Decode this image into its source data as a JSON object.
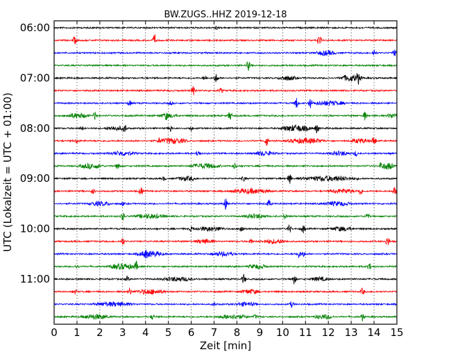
{
  "chart_data": {
    "type": "line",
    "title": "BW.ZUGS..HHZ 2019-12-18",
    "xlabel": "Zeit  [min]",
    "ylabel": "UTC (Lokalzeit = UTC + 01:00)",
    "xlim": [
      0,
      15
    ],
    "x_ticks": [
      "0",
      "1",
      "2",
      "3",
      "4",
      "5",
      "6",
      "7",
      "8",
      "9",
      "10",
      "11",
      "12",
      "13",
      "14",
      "15"
    ],
    "y_ticks": [
      "06:00",
      "07:00",
      "08:00",
      "09:00",
      "10:00",
      "11:00"
    ],
    "grid": "vertical dotted lines at each minute",
    "trace_color_cycle": [
      "#000000",
      "#ff0000",
      "#0000ff",
      "#008000"
    ],
    "trace_start_times": [
      "06:00",
      "06:15",
      "06:30",
      "06:45",
      "07:00",
      "07:15",
      "07:30",
      "07:45",
      "08:00",
      "08:15",
      "08:30",
      "08:45",
      "09:00",
      "09:15",
      "09:30",
      "09:45",
      "10:00",
      "10:15",
      "10:30",
      "10:45",
      "11:00",
      "11:15",
      "11:30",
      "11:45"
    ],
    "spikes": [
      [
        [
          7.1,
          0.3
        ]
      ],
      [
        [
          0.9,
          0.6
        ],
        [
          4.4,
          0.9
        ],
        [
          11.6,
          0.9
        ]
      ],
      [
        [
          14.0,
          0.6
        ],
        [
          14.9,
          0.5
        ]
      ],
      [
        [
          8.5,
          0.8
        ]
      ],
      [
        [
          7.1,
          0.8
        ],
        [
          13.3,
          0.7
        ],
        [
          6.6,
          0.4
        ]
      ],
      [
        [
          6.1,
          0.8
        ],
        [
          7.3,
          0.4
        ]
      ],
      [
        [
          3.3,
          0.5
        ],
        [
          10.6,
          0.9
        ],
        [
          11.2,
          0.8
        ],
        [
          5.1,
          0.3
        ]
      ],
      [
        [
          1.8,
          0.7
        ],
        [
          7.7,
          0.8
        ],
        [
          13.6,
          0.7
        ],
        [
          4.9,
          0.4
        ]
      ],
      [
        [
          3.1,
          0.6
        ],
        [
          5.1,
          0.5
        ],
        [
          11.5,
          0.8
        ],
        [
          6.0,
          0.4
        ],
        [
          1.2,
          0.3
        ]
      ],
      [
        [
          9.3,
          0.8
        ],
        [
          14.0,
          0.9
        ],
        [
          1.0,
          0.4
        ],
        [
          4.6,
          0.4
        ]
      ],
      [
        [
          6.3,
          0.6
        ],
        [
          13.2,
          0.4
        ]
      ],
      [
        [
          2.8,
          0.7
        ],
        [
          7.9,
          0.5
        ],
        [
          14.3,
          0.6
        ]
      ],
      [
        [
          10.3,
          0.9
        ],
        [
          8.3,
          0.4
        ],
        [
          4.8,
          0.3
        ]
      ],
      [
        [
          3.8,
          0.7
        ],
        [
          13.4,
          0.7
        ],
        [
          14.9,
          0.6
        ],
        [
          1.7,
          0.4
        ]
      ],
      [
        [
          7.5,
          0.9
        ],
        [
          9.4,
          0.6
        ],
        [
          3.0,
          0.3
        ]
      ],
      [
        [
          3.0,
          0.7
        ],
        [
          10.1,
          0.5
        ],
        [
          13.7,
          0.6
        ]
      ],
      [
        [
          8.2,
          0.8
        ],
        [
          10.3,
          0.7
        ],
        [
          10.9,
          0.7
        ],
        [
          6.0,
          0.4
        ]
      ],
      [
        [
          3.0,
          0.7
        ],
        [
          14.6,
          0.8
        ],
        [
          8.6,
          0.4
        ]
      ],
      [
        [
          10.7,
          0.6
        ],
        [
          10.9,
          0.5
        ],
        [
          4.0,
          0.4
        ]
      ],
      [
        [
          3.6,
          0.7
        ],
        [
          13.8,
          0.6
        ],
        [
          1.0,
          0.3
        ]
      ],
      [
        [
          8.3,
          0.8
        ],
        [
          10.5,
          0.8
        ],
        [
          3.2,
          0.4
        ]
      ],
      [
        [
          3.3,
          0.6
        ],
        [
          13.5,
          0.6
        ],
        [
          0.9,
          0.4
        ]
      ],
      [
        [
          10.4,
          0.5
        ],
        [
          7.0,
          0.3
        ]
      ],
      [
        [
          13.5,
          0.6
        ],
        [
          4.3,
          0.4
        ],
        [
          8.8,
          0.3
        ]
      ]
    ],
    "bursts": [
      [],
      [],
      [
        [
          11.9,
          1.0,
          0.35
        ]
      ],
      [],
      [
        [
          13.0,
          1.2,
          0.45
        ],
        [
          10.2,
          1.0,
          0.3
        ]
      ],
      [],
      [
        [
          12.0,
          1.8,
          0.3
        ]
      ],
      [
        [
          1.0,
          1.2,
          0.35
        ],
        [
          14.8,
          0.6,
          0.35
        ],
        [
          5.0,
          1.0,
          0.25
        ]
      ],
      [
        [
          10.6,
          1.6,
          0.45
        ],
        [
          2.7,
          1.0,
          0.3
        ]
      ],
      [
        [
          5.2,
          1.4,
          0.4
        ],
        [
          11.0,
          2.0,
          0.35
        ],
        [
          13.4,
          1.0,
          0.3
        ]
      ],
      [
        [
          3.0,
          1.4,
          0.3
        ],
        [
          9.2,
          1.2,
          0.3
        ],
        [
          12.5,
          1.0,
          0.3
        ]
      ],
      [
        [
          1.6,
          1.2,
          0.35
        ],
        [
          6.6,
          1.6,
          0.35
        ],
        [
          14.6,
          0.6,
          0.5
        ]
      ],
      [
        [
          12.0,
          3.0,
          0.35
        ],
        [
          5.8,
          1.0,
          0.3
        ]
      ],
      [
        [
          8.6,
          2.0,
          0.35
        ],
        [
          12.6,
          1.4,
          0.3
        ]
      ],
      [
        [
          2.0,
          1.2,
          0.3
        ],
        [
          12.4,
          1.4,
          0.3
        ]
      ],
      [
        [
          4.2,
          1.6,
          0.3
        ],
        [
          8.8,
          1.2,
          0.3
        ]
      ],
      [
        [
          6.8,
          1.6,
          0.3
        ],
        [
          12.6,
          1.2,
          0.3
        ]
      ],
      [
        [
          6.6,
          1.0,
          0.3
        ],
        [
          9.6,
          1.4,
          0.3
        ]
      ],
      [
        [
          4.2,
          1.4,
          0.4
        ],
        [
          7.4,
          1.2,
          0.3
        ]
      ],
      [
        [
          3.0,
          1.4,
          0.4
        ],
        [
          8.9,
          1.0,
          0.3
        ]
      ],
      [
        [
          5.4,
          1.6,
          0.3
        ],
        [
          11.6,
          1.0,
          0.25
        ]
      ],
      [
        [
          4.2,
          1.6,
          0.35
        ],
        [
          8.6,
          1.0,
          0.3
        ]
      ],
      [
        [
          2.6,
          2.0,
          0.3
        ],
        [
          8.4,
          1.2,
          0.25
        ]
      ],
      [
        [
          1.8,
          1.4,
          0.35
        ],
        [
          7.8,
          1.6,
          0.3
        ],
        [
          11.8,
          1.0,
          0.3
        ]
      ]
    ]
  }
}
